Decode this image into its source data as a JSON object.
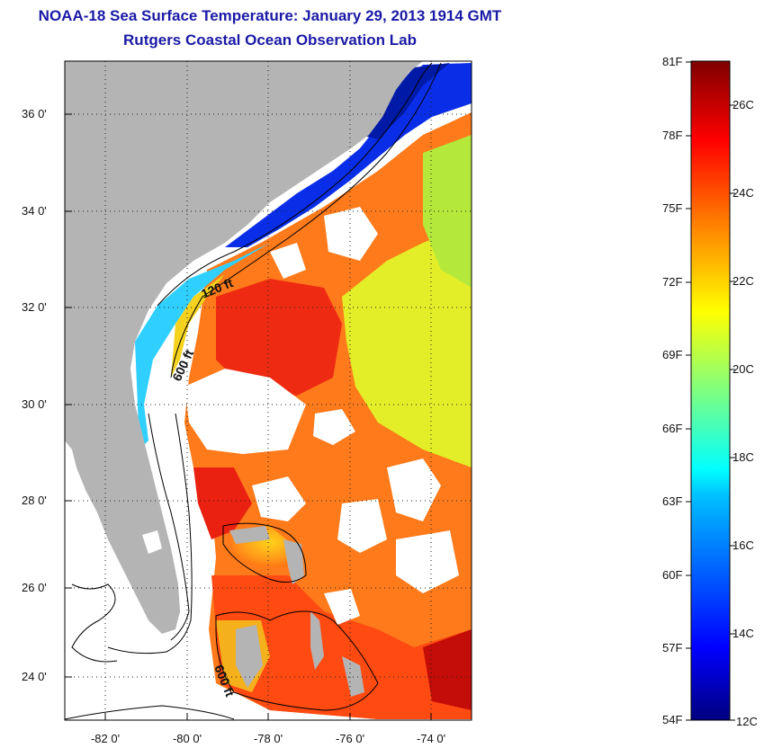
{
  "header": {
    "title": "NOAA-18 Sea Surface Temperature:  January 29, 2013 1914 GMT",
    "subtitle": "Rutgers Coastal Ocean Observation Lab"
  },
  "map": {
    "lat_range": [
      23,
      37
    ],
    "lon_range": [
      -83,
      -73
    ],
    "lat_ticks": [
      "36 0'",
      "34 0'",
      "32 0'",
      "30 0'",
      "28 0'",
      "26 0'",
      "24 0'"
    ],
    "lon_ticks": [
      "-82 0'",
      "-80 0'",
      "-78 0'",
      "-76 0'",
      "-74 0'"
    ],
    "contour_labels": [
      "120 ft",
      "600 ft",
      "600 ft"
    ],
    "land_color": "#b4b4b4",
    "cloud_color": "#ffffff"
  },
  "colorbar": {
    "f_labels": [
      "81F",
      "78F",
      "75F",
      "72F",
      "69F",
      "66F",
      "63F",
      "60F",
      "57F",
      "54F"
    ],
    "c_labels": [
      "26C",
      "24C",
      "22C",
      "20C",
      "18C",
      "16C",
      "14C",
      "12C"
    ],
    "range_c": [
      12,
      27
    ],
    "colormap": "jet"
  }
}
